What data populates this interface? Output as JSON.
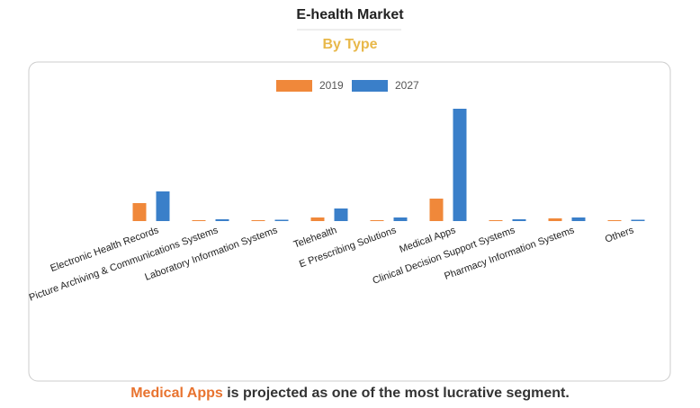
{
  "header": {
    "title": "E-health Market",
    "subtitle": "By Type"
  },
  "chart_data": {
    "type": "bar",
    "categories": [
      "Electronic Health Records",
      "Picture Archiving & Communications Systems",
      "Laboratory Information Systems",
      "Telehealth",
      "E Prescribing Solutions",
      "Medical Apps",
      "Clinical Decision Support Systems",
      "Pharmacy Information Systems",
      "Others"
    ],
    "series": [
      {
        "name": "2019",
        "color": "#f0883a",
        "values": [
          20,
          1,
          1,
          4,
          1,
          25,
          1,
          3,
          1
        ]
      },
      {
        "name": "2027",
        "color": "#3a7fc9",
        "values": [
          33,
          2,
          1.5,
          14,
          4,
          125,
          2,
          4,
          1.5
        ]
      }
    ],
    "ylim": [
      0,
      130
    ],
    "legend": "top"
  },
  "footer": {
    "highlight": "Medical Apps",
    "text": "is projected as one of the most lucrative segment."
  }
}
